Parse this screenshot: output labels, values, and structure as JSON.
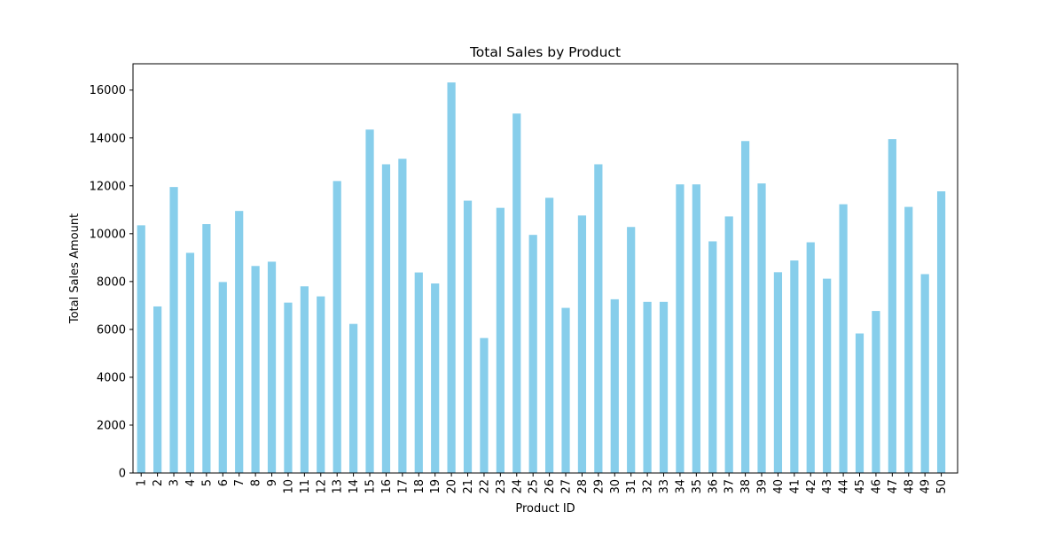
{
  "chart_data": {
    "type": "bar",
    "title": "Total Sales by Product",
    "xlabel": "Product ID",
    "ylabel": "Total Sales Amount",
    "categories": [
      "1",
      "2",
      "3",
      "4",
      "5",
      "6",
      "7",
      "8",
      "9",
      "10",
      "11",
      "12",
      "13",
      "14",
      "15",
      "16",
      "17",
      "18",
      "19",
      "20",
      "21",
      "22",
      "23",
      "24",
      "25",
      "26",
      "27",
      "28",
      "29",
      "30",
      "31",
      "32",
      "33",
      "34",
      "35",
      "36",
      "37",
      "38",
      "39",
      "40",
      "41",
      "42",
      "43",
      "44",
      "45",
      "46",
      "47",
      "48",
      "49",
      "50"
    ],
    "values": [
      10350,
      6960,
      11950,
      9200,
      10400,
      7980,
      10950,
      8650,
      8830,
      7120,
      7800,
      7380,
      12200,
      6230,
      14350,
      12900,
      13130,
      8380,
      7920,
      16320,
      11380,
      5640,
      11080,
      15020,
      9950,
      11500,
      6900,
      10760,
      12900,
      7260,
      10280,
      7150,
      7150,
      12060,
      12060,
      9680,
      10720,
      13870,
      12100,
      8390,
      8880,
      9640,
      8120,
      11230,
      5830,
      6770,
      13950,
      11120,
      8310,
      11770
    ],
    "ylim": [
      0,
      17100
    ],
    "yticks": [
      0,
      2000,
      4000,
      6000,
      8000,
      10000,
      12000,
      14000,
      16000
    ],
    "bar_color": "#87ceeb",
    "grid": false,
    "legend": false
  }
}
